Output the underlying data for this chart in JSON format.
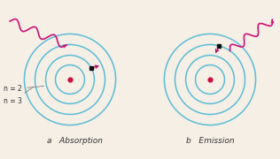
{
  "background_color": "#f5efe6",
  "orbit_color": "#5bbcd6",
  "orbit_linewidth": 1.1,
  "nucleus_color": "#cc1144",
  "electron_color": "#111111",
  "arrow_color": "#aa1166",
  "wave_color": "#cc1177",
  "label_color": "#333333",
  "label_fontsize": 5.5,
  "caption_fontsize": 6.5,
  "orbit_radii": [
    0.15,
    0.25,
    0.36,
    0.47
  ],
  "title_a": "a   Absorption",
  "title_b": "b   Emission"
}
